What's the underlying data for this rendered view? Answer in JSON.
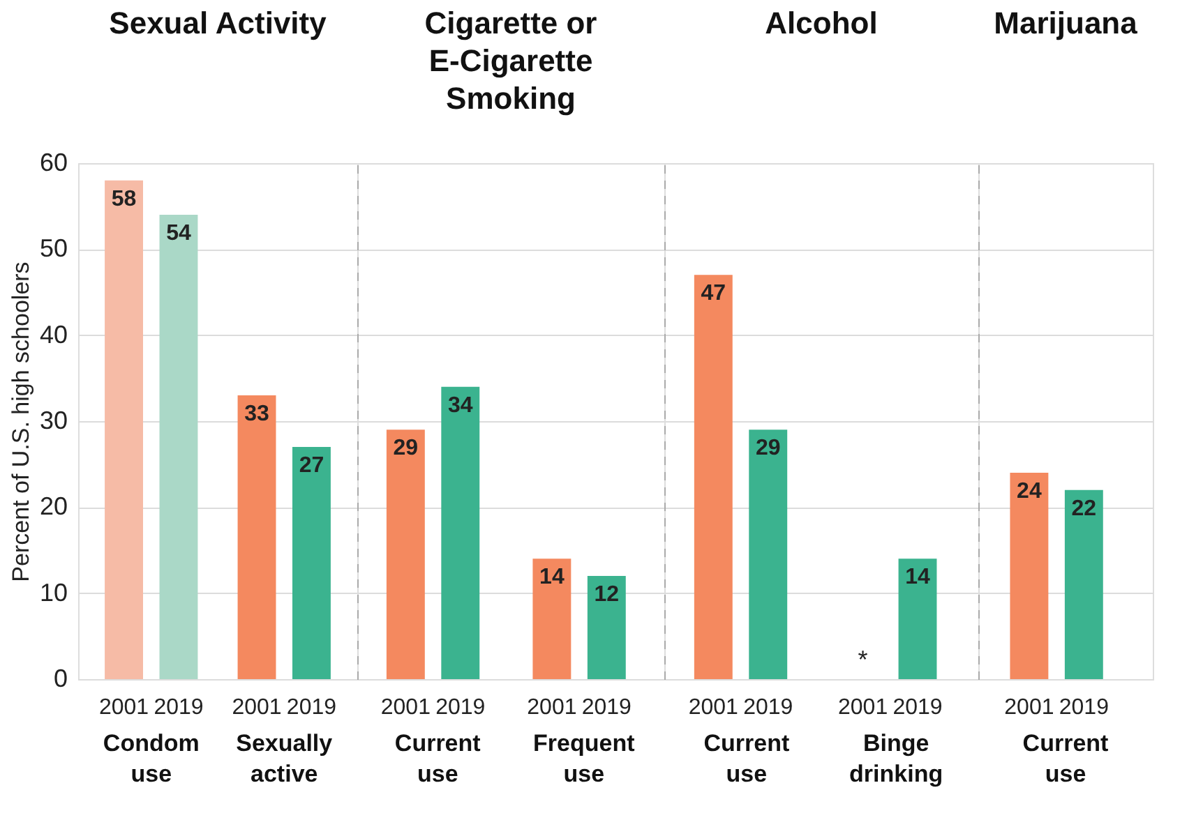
{
  "chart_data": [
    {
      "type": "bar",
      "title": "Sexual Activity",
      "ylabel": "Percent of U.S. high schoolers",
      "categories": [
        "Condom\nuse",
        "Sexually\nactive"
      ],
      "ylim": [
        0,
        60
      ],
      "yticks": [
        0,
        10,
        20,
        30,
        40,
        50,
        60
      ],
      "grid": "y",
      "series": [
        {
          "name": "2001",
          "colors": [
            "#f6bba6",
            "#f4895f"
          ],
          "values": [
            58,
            33
          ],
          "value_labels": [
            "58",
            "33"
          ]
        },
        {
          "name": "2019",
          "colors": [
            "#aad8c7",
            "#3bb38f"
          ],
          "values": [
            54,
            27
          ],
          "value_labels": [
            "54",
            "27"
          ]
        }
      ]
    },
    {
      "type": "bar",
      "title": "Cigarette or\nE-Cigarette\nSmoking",
      "categories": [
        "Current\nuse",
        "Frequent\nuse"
      ],
      "ylim": [
        0,
        60
      ],
      "yticks": [
        0,
        10,
        20,
        30,
        40,
        50,
        60
      ],
      "grid": "y",
      "tick_labels": "x",
      "series": [
        {
          "name": "2001",
          "color": "#f4895f",
          "values": [
            29,
            14
          ],
          "value_labels": [
            "29",
            "14"
          ]
        },
        {
          "name": "2019",
          "color": "#3bb38f",
          "values": [
            34,
            12
          ],
          "value_labels": [
            "34",
            "12"
          ]
        }
      ]
    },
    {
      "type": "bar",
      "title": "Alcohol",
      "categories": [
        "Current\nuse",
        "Binge\ndrinking"
      ],
      "ylim": [
        0,
        60
      ],
      "yticks": [
        0,
        10,
        20,
        30,
        40,
        50,
        60
      ],
      "grid": "y",
      "tick_labels": "x",
      "series": [
        {
          "name": "2001",
          "color": "#f4895f",
          "values": [
            47,
            null
          ],
          "value_labels": [
            "47",
            "*"
          ]
        },
        {
          "name": "2019",
          "color": "#3bb38f",
          "values": [
            29,
            14
          ],
          "value_labels": [
            "29",
            "14"
          ]
        }
      ]
    },
    {
      "type": "bar",
      "title": "Marijuana",
      "categories": [
        "Current\nuse"
      ],
      "ylim": [
        0,
        60
      ],
      "yticks": [
        0,
        10,
        20,
        30,
        40,
        50,
        60
      ],
      "grid": "y",
      "tick_labels": "x",
      "series": [
        {
          "name": "2001",
          "color": "#f4895f",
          "values": [
            24
          ],
          "value_labels": [
            "24"
          ]
        },
        {
          "name": "2019",
          "color": "#3bb38f",
          "values": [
            22
          ],
          "value_labels": [
            "22"
          ]
        }
      ]
    }
  ]
}
